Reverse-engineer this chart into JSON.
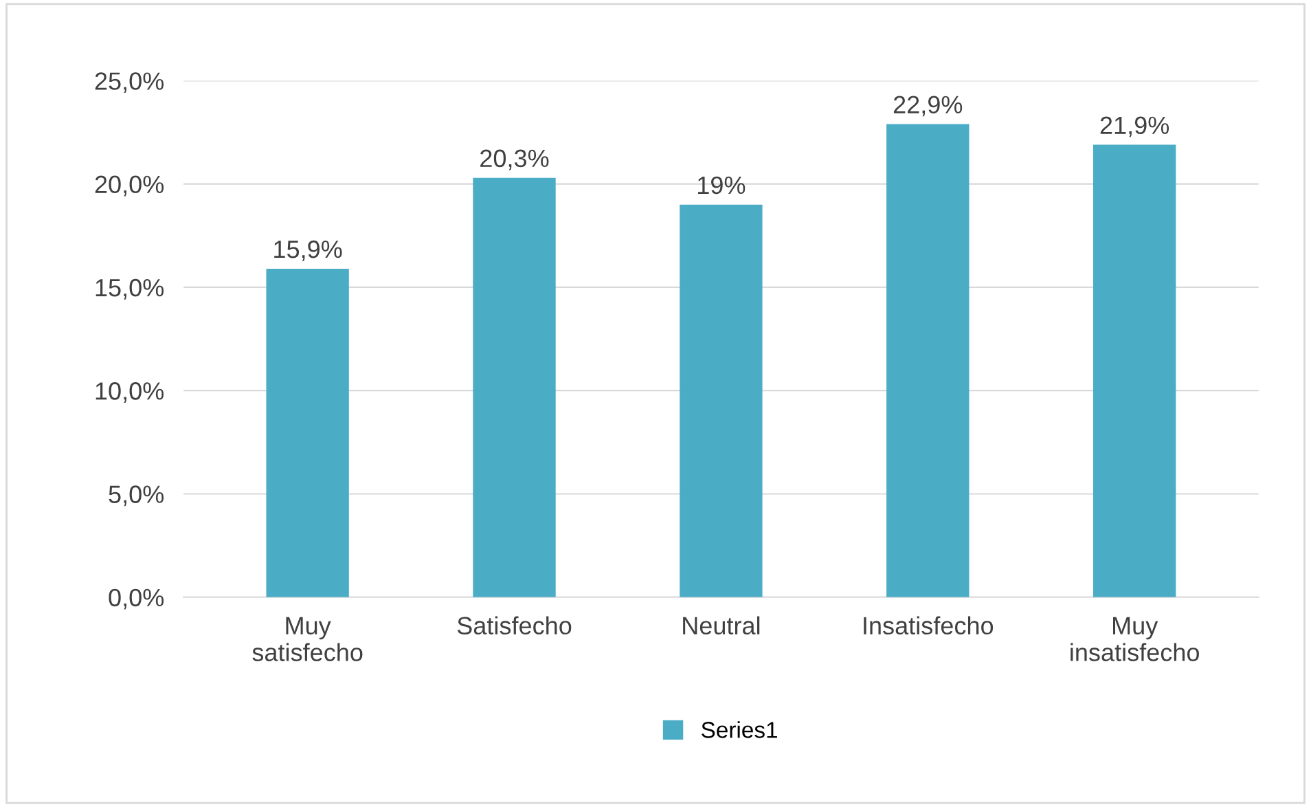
{
  "chart_data": {
    "type": "bar",
    "categories": [
      "Muy\nsatisfecho",
      "Satisfecho",
      "Neutral",
      "Insatisfecho",
      "Muy\ninsatisfecho"
    ],
    "series": [
      {
        "name": "Series1",
        "color": "#4bacc6",
        "values": [
          15.9,
          20.3,
          19,
          22.9,
          21.9
        ],
        "value_labels": [
          "15,9%",
          "20,3%",
          "19%",
          "22,9%",
          "21,9%"
        ]
      }
    ],
    "ylim": [
      0,
      25
    ],
    "yticks": [
      {
        "value": 0,
        "label": "0,0%"
      },
      {
        "value": 5,
        "label": "5,0%"
      },
      {
        "value": 10,
        "label": "10,0%"
      },
      {
        "value": 15,
        "label": "15,0%"
      },
      {
        "value": 20,
        "label": "20,0%"
      },
      {
        "value": 25,
        "label": "25,0%"
      }
    ],
    "grid": "y",
    "legend": "bottom"
  }
}
